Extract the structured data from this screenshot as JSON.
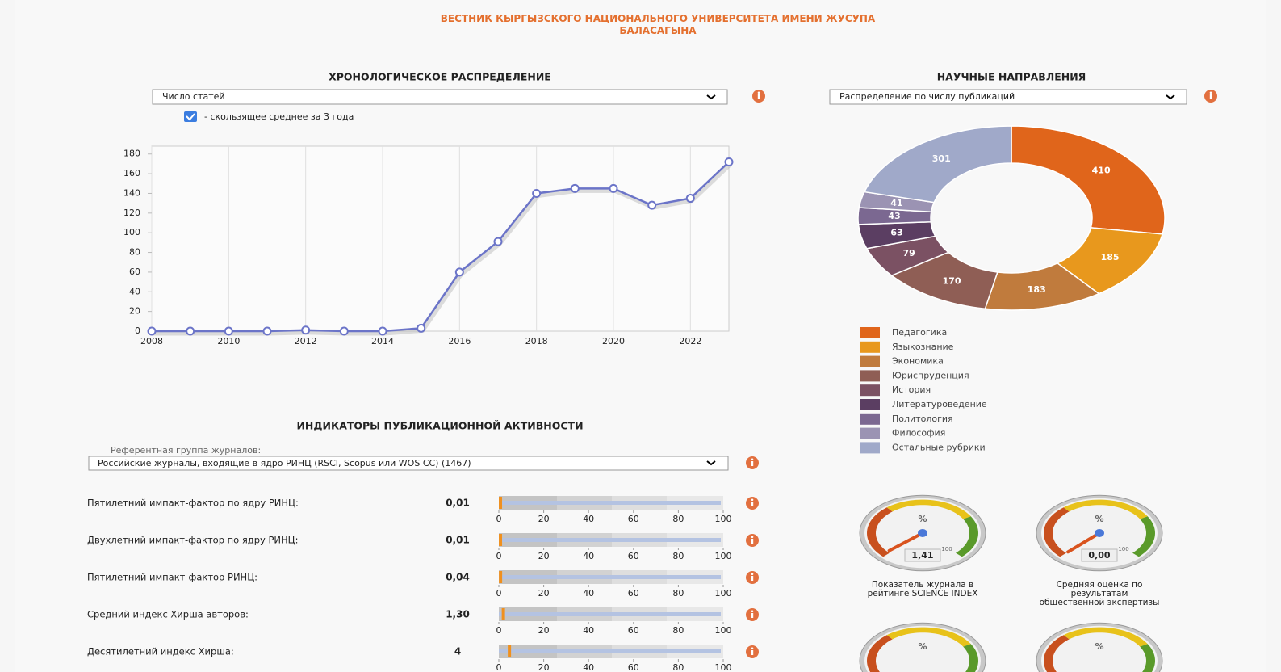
{
  "header": {
    "title": "ВЕСТНИК КЫРГЫЗСКОГО НАЦИОНАЛЬНОГО УНИВЕРСИТЕТА ИМЕНИ ЖУСУПА БАЛАСАГЫНА"
  },
  "chronology": {
    "title": "ХРОНОЛОГИЧЕСКОЕ РАСПРЕДЕЛЕНИЕ",
    "select": "Число статей",
    "checkbox_label": "- скользящее среднее за 3 года",
    "chart_data": {
      "type": "line",
      "x": [
        2008,
        2009,
        2010,
        2011,
        2012,
        2013,
        2014,
        2015,
        2016,
        2017,
        2018,
        2019,
        2020,
        2021,
        2022,
        2023
      ],
      "values": [
        0,
        0,
        0,
        0,
        1,
        0,
        0,
        3,
        60,
        91,
        140,
        145,
        145,
        128,
        135,
        172
      ],
      "color": "#6b74c8",
      "xlim": [
        2008,
        2023
      ],
      "xticks": [
        2008,
        2010,
        2012,
        2014,
        2016,
        2018,
        2020,
        2022
      ],
      "ylim": [
        0,
        188
      ],
      "yticks": [
        0,
        20,
        40,
        60,
        80,
        100,
        120,
        140,
        160,
        180
      ],
      "grid": true
    }
  },
  "directions": {
    "title": "НАУЧНЫЕ НАПРАВЛЕНИЯ",
    "select": "Распределение по числу публикаций",
    "chart_data": {
      "type": "pie",
      "donut": true,
      "categories": [
        "Педагогика",
        "Языкознание",
        "Экономика",
        "Юриспруденция",
        "История",
        "Литературоведение",
        "Политология",
        "Философия",
        "Остальные рубрики"
      ],
      "values": [
        410,
        185,
        183,
        170,
        79,
        63,
        43,
        41,
        301
      ],
      "colors": [
        "#e0651b",
        "#e8981d",
        "#c07b3d",
        "#8f5e55",
        "#7b5163",
        "#5b3e62",
        "#7b6891",
        "#9b93b3",
        "#a0a9c9"
      ]
    }
  },
  "indicators": {
    "title": "ИНДИКАТОРЫ ПУБЛИКАЦИОННОЙ АКТИВНОСТИ",
    "select_label": "Референтная группа журналов:",
    "select": "Российские журналы, входящие в ядро РИНЦ (RSCI, Scopus или WOS CC) (1467)",
    "xlim": [
      0,
      100
    ],
    "xticks": [
      0,
      20,
      40,
      60,
      80,
      100
    ],
    "rows": [
      {
        "label": "Пятилетний импакт-фактор по ядру РИНЦ:",
        "value": 0.01,
        "value_label": "0,01"
      },
      {
        "label": "Двухлетний импакт-фактор по ядру РИНЦ:",
        "value": 0.01,
        "value_label": "0,01"
      },
      {
        "label": "Пятилетний импакт-фактор РИНЦ:",
        "value": 0.04,
        "value_label": "0,04"
      },
      {
        "label": "Средний индекс Хирша авторов:",
        "value": 1.3,
        "value_label": "1,30"
      },
      {
        "label": "Десятилетний индекс Хирша:",
        "value": 4
      }
    ]
  },
  "gauges": [
    {
      "unit": "%",
      "value": 1.41,
      "value_label": "1,41",
      "max": 100,
      "label": "Показатель журнала в рейтинге SCIENCE INDEX"
    },
    {
      "unit": "%",
      "value": 0,
      "value_label": "0,00",
      "max": 100,
      "label": "Средняя оценка по результатам общественной экспертизы"
    },
    {
      "unit": "%"
    },
    {
      "unit": "%"
    }
  ]
}
